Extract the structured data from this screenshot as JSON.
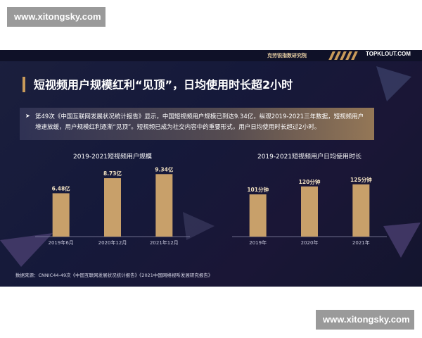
{
  "watermark": {
    "text": "www.xitongsky.com"
  },
  "header": {
    "brand_cn": "克劳锐指数研究院",
    "brand_en": "TOPKLOUT.COM"
  },
  "title": "短视频用户规模红利“见顶”，日均使用时长超2小时",
  "summary": {
    "bullet": "➤",
    "text": "第49次《中国互联网发展状况统计报告》显示，中国短视频用户规模已到达9.34亿，纵观2019-2021三年数据，短视频用户增速放缓，用户规模红利逐渐“见顶”。短视频已成为社交内容中的重要形式，用户日均使用时长超过2小时。"
  },
  "chart_data": [
    {
      "type": "bar",
      "title": "2019-2021短视频用户规模",
      "categories": [
        "2019年6月",
        "2020年12月",
        "2021年12月"
      ],
      "values": [
        6.48,
        8.73,
        9.34
      ],
      "data_labels": [
        "6.48亿",
        "8.73亿",
        "9.34亿"
      ],
      "unit": "亿",
      "ylim": [
        0,
        10
      ],
      "bar_color": "#c8a06a",
      "grid": false
    },
    {
      "type": "bar",
      "title": "2019-2021短视频用户日均使用时长",
      "categories": [
        "2019年",
        "2020年",
        "2021年"
      ],
      "values": [
        101,
        120,
        125
      ],
      "data_labels": [
        "101分钟",
        "120分钟",
        "125分钟"
      ],
      "unit": "分钟",
      "ylim": [
        0,
        160
      ],
      "bar_color": "#c8a06a",
      "grid": false
    }
  ],
  "source": "数据来源：CNNIC44-49次《中国互联网发展状况统计报告》《2021中国网络视听发展研究报告》"
}
